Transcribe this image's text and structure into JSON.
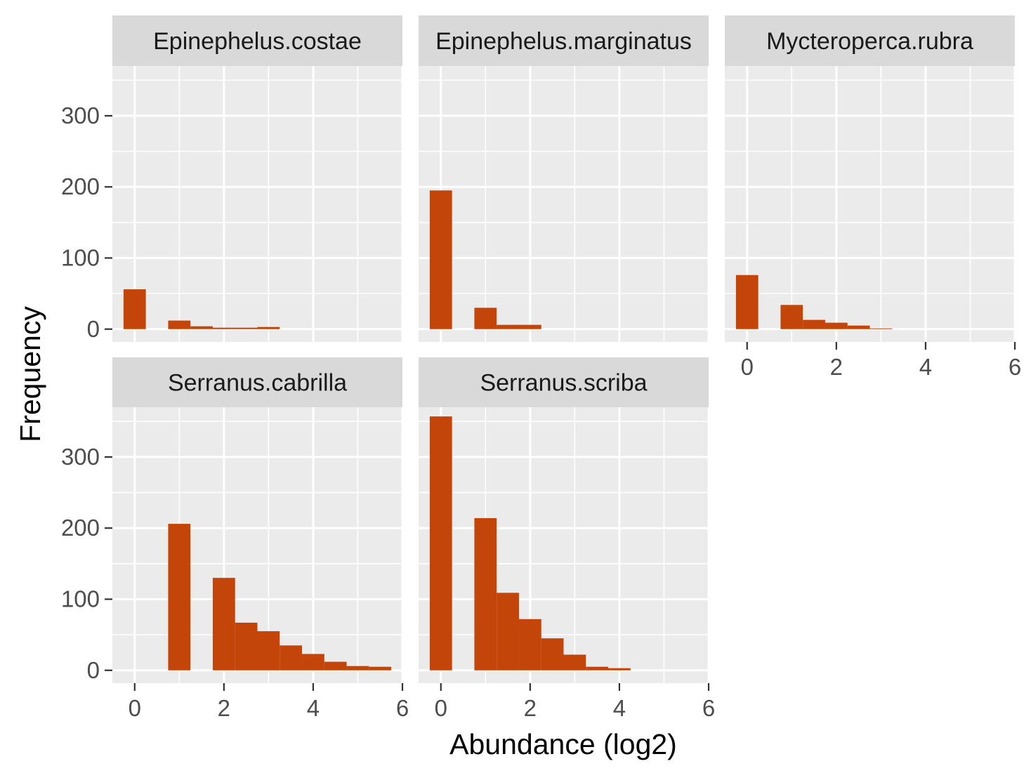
{
  "chart_data": {
    "type": "bar",
    "xlabel": "Abundance (log2)",
    "ylabel": "Frequency",
    "xlim": [
      -0.5,
      6
    ],
    "ylim": [
      -18,
      370
    ],
    "x_ticks": [
      0,
      2,
      4,
      6
    ],
    "y_ticks": [
      0,
      100,
      200,
      300
    ],
    "bin_width": 0.5,
    "bar_color": "#C44509",
    "panel_background": "#EBEBEB",
    "strip_background": "#D9D9D9",
    "grid": true,
    "facets": [
      {
        "name": "Epinephelus.costae",
        "bins": [
          {
            "x": 0.0,
            "count": 56
          },
          {
            "x": 1.0,
            "count": 12
          },
          {
            "x": 1.5,
            "count": 4
          },
          {
            "x": 2.0,
            "count": 2
          },
          {
            "x": 2.5,
            "count": 2
          },
          {
            "x": 3.0,
            "count": 3
          }
        ]
      },
      {
        "name": "Epinephelus.marginatus",
        "bins": [
          {
            "x": 0.0,
            "count": 195
          },
          {
            "x": 1.0,
            "count": 30
          },
          {
            "x": 1.5,
            "count": 6
          },
          {
            "x": 2.0,
            "count": 6
          }
        ]
      },
      {
        "name": "Mycteroperca.rubra",
        "bins": [
          {
            "x": 0.0,
            "count": 76
          },
          {
            "x": 1.0,
            "count": 34
          },
          {
            "x": 1.5,
            "count": 13
          },
          {
            "x": 2.0,
            "count": 9
          },
          {
            "x": 2.5,
            "count": 5
          },
          {
            "x": 3.0,
            "count": 1
          }
        ]
      },
      {
        "name": "Serranus.cabrilla",
        "bins": [
          {
            "x": 1.0,
            "count": 206
          },
          {
            "x": 2.0,
            "count": 130
          },
          {
            "x": 2.5,
            "count": 67
          },
          {
            "x": 3.0,
            "count": 55
          },
          {
            "x": 3.5,
            "count": 35
          },
          {
            "x": 4.0,
            "count": 23
          },
          {
            "x": 4.5,
            "count": 12
          },
          {
            "x": 5.0,
            "count": 6
          },
          {
            "x": 5.5,
            "count": 5
          }
        ]
      },
      {
        "name": "Serranus.scriba",
        "bins": [
          {
            "x": 0.0,
            "count": 357
          },
          {
            "x": 1.0,
            "count": 214
          },
          {
            "x": 1.5,
            "count": 109
          },
          {
            "x": 2.0,
            "count": 72
          },
          {
            "x": 2.5,
            "count": 45
          },
          {
            "x": 3.0,
            "count": 22
          },
          {
            "x": 3.5,
            "count": 5
          },
          {
            "x": 4.0,
            "count": 3
          }
        ]
      }
    ]
  }
}
